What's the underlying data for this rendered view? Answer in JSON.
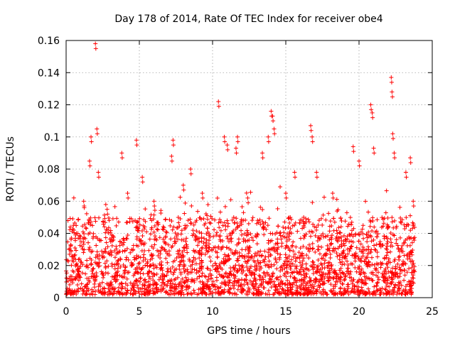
{
  "chart_data": {
    "type": "scatter",
    "title": "Day 178 of 2014, Rate Of TEC Index for receiver obe4",
    "xlabel": "GPS time / hours",
    "ylabel": "ROTI / TECUs",
    "xlim": [
      0,
      25
    ],
    "ylim": [
      0,
      0.16
    ],
    "xticks": [
      "0",
      "5",
      "10",
      "15",
      "20",
      "25"
    ],
    "yticks": [
      "0",
      "0.02",
      "0.04",
      "0.06",
      "0.08",
      "0.1",
      "0.12",
      "0.14",
      "0.16"
    ],
    "grid": true,
    "marker": "+",
    "color": "#ff0000",
    "series": [
      {
        "name": "ROTI",
        "sample_points": [
          [
            0.2,
            0.03
          ],
          [
            0.5,
            0.045
          ],
          [
            0.8,
            0.04
          ],
          [
            1.2,
            0.06
          ],
          [
            1.6,
            0.085
          ],
          [
            1.7,
            0.1
          ],
          [
            2.0,
            0.158
          ],
          [
            2.1,
            0.105
          ],
          [
            2.2,
            0.078
          ],
          [
            2.8,
            0.055
          ],
          [
            3.8,
            0.09
          ],
          [
            4.2,
            0.065
          ],
          [
            4.8,
            0.098
          ],
          [
            5.2,
            0.075
          ],
          [
            6.0,
            0.06
          ],
          [
            7.2,
            0.088
          ],
          [
            7.3,
            0.098
          ],
          [
            8.0,
            0.07
          ],
          [
            8.5,
            0.08
          ],
          [
            9.3,
            0.065
          ],
          [
            10.4,
            0.122
          ],
          [
            10.8,
            0.1
          ],
          [
            11.0,
            0.095
          ],
          [
            11.6,
            0.093
          ],
          [
            11.7,
            0.1
          ],
          [
            12.4,
            0.062
          ],
          [
            13.4,
            0.09
          ],
          [
            13.8,
            0.1
          ],
          [
            14.0,
            0.116
          ],
          [
            14.1,
            0.113
          ],
          [
            14.2,
            0.105
          ],
          [
            15.0,
            0.065
          ],
          [
            15.6,
            0.078
          ],
          [
            16.7,
            0.107
          ],
          [
            16.8,
            0.1
          ],
          [
            17.1,
            0.078
          ],
          [
            18.2,
            0.065
          ],
          [
            19.6,
            0.094
          ],
          [
            20.0,
            0.085
          ],
          [
            20.8,
            0.12
          ],
          [
            20.9,
            0.115
          ],
          [
            21.0,
            0.093
          ],
          [
            22.2,
            0.137
          ],
          [
            22.25,
            0.128
          ],
          [
            22.3,
            0.102
          ],
          [
            22.4,
            0.09
          ],
          [
            23.2,
            0.078
          ],
          [
            23.5,
            0.087
          ],
          [
            23.7,
            0.06
          ]
        ],
        "dense_band": {
          "x_range": [
            0,
            23.8
          ],
          "y_range": [
            0.002,
            0.05
          ],
          "median": 0.02
        }
      }
    ]
  }
}
